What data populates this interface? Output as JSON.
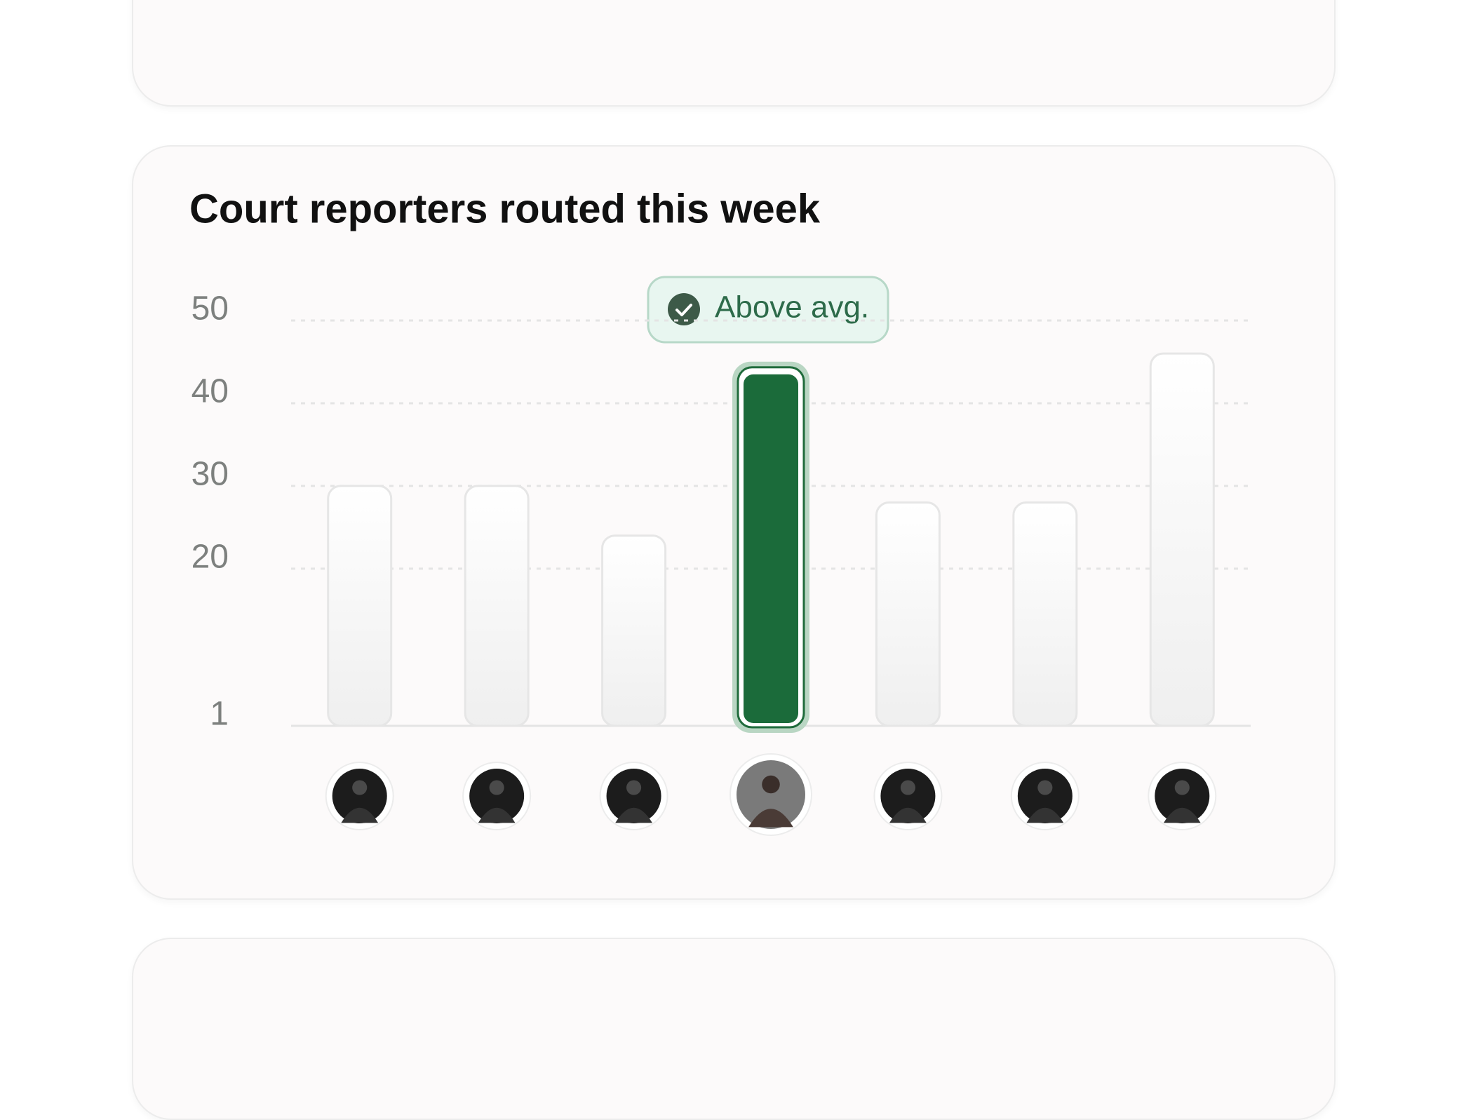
{
  "chart_data": {
    "type": "bar",
    "title": "Court reporters routed this week",
    "annotation": "Above avg.",
    "categories": [
      null,
      null,
      null,
      null,
      null,
      null,
      null
    ],
    "values": [
      30,
      30,
      24,
      44,
      28,
      28,
      46
    ],
    "colors": [
      "#f3f3f3",
      "#f3f3f3",
      "#f3f3f3",
      "#1b6b3a",
      "#f3f3f3",
      "#f3f3f3",
      "#f3f3f3"
    ],
    "ylim": [
      1,
      50
    ],
    "yticks": [
      1,
      20,
      30,
      40,
      50
    ],
    "grid": true
  }
}
